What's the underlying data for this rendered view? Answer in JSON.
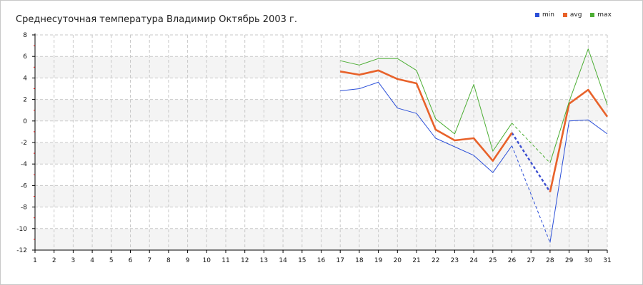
{
  "chart_data": {
    "type": "line",
    "title": "Среднесуточная температура Владимир  Октябрь 2003 г.",
    "categories": [
      "1",
      "2",
      "3",
      "4",
      "5",
      "6",
      "7",
      "8",
      "9",
      "10",
      "11",
      "12",
      "13",
      "14",
      "15",
      "16",
      "17",
      "18",
      "19",
      "20",
      "21",
      "22",
      "23",
      "24",
      "25",
      "26",
      "27",
      "28",
      "29",
      "30",
      "31"
    ],
    "x_labels": [
      "1",
      "2",
      "3",
      "4",
      "5",
      "6",
      "7",
      "8",
      "9",
      "10",
      "11",
      "12",
      "13",
      "14",
      "15",
      "16",
      "17",
      "18",
      "19",
      "20",
      "21",
      "22",
      "23",
      "24",
      "25",
      "26",
      "27",
      "28",
      "29",
      "30",
      "31"
    ],
    "y_labels": [
      "8",
      "6",
      "4",
      "2",
      "0",
      "-2",
      "-4",
      "-6",
      "-8",
      "-10",
      "-12"
    ],
    "ylim": [
      -12,
      8
    ],
    "grid": true,
    "legend_position": "top-right",
    "series": [
      {
        "name": "min",
        "color": "#2b4fd8",
        "points": [
          [
            17,
            2.8
          ],
          [
            18,
            3.0
          ],
          [
            19,
            3.6
          ],
          [
            20,
            1.2
          ],
          [
            21,
            0.7
          ],
          [
            22,
            -1.6
          ],
          [
            23,
            -2.4
          ],
          [
            24,
            -3.2
          ],
          [
            25,
            -4.8
          ],
          [
            26,
            -2.3
          ],
          [
            28,
            -11.3
          ],
          [
            29,
            0.0
          ],
          [
            30,
            0.1
          ],
          [
            31,
            -1.2
          ]
        ]
      },
      {
        "name": "avg",
        "color": "#e8622a",
        "points": [
          [
            17,
            4.6
          ],
          [
            18,
            4.3
          ],
          [
            19,
            4.7
          ],
          [
            20,
            3.9
          ],
          [
            21,
            3.5
          ],
          [
            22,
            -0.8
          ],
          [
            23,
            -1.8
          ],
          [
            24,
            -1.6
          ],
          [
            25,
            -3.7
          ],
          [
            26,
            -1.1
          ],
          [
            28,
            -6.6
          ],
          [
            29,
            1.6
          ],
          [
            30,
            2.9
          ],
          [
            31,
            0.4
          ]
        ]
      },
      {
        "name": "max",
        "color": "#4cae34",
        "points": [
          [
            17,
            5.6
          ],
          [
            18,
            5.2
          ],
          [
            19,
            5.8
          ],
          [
            20,
            5.8
          ],
          [
            21,
            4.7
          ],
          [
            22,
            0.2
          ],
          [
            23,
            -1.2
          ],
          [
            24,
            3.4
          ],
          [
            25,
            -2.8
          ],
          [
            26,
            -0.2
          ],
          [
            28,
            -3.9
          ],
          [
            29,
            1.8
          ],
          [
            30,
            6.7
          ],
          [
            31,
            1.5
          ]
        ]
      }
    ],
    "gap": {
      "from": 26,
      "to": 28,
      "style": "dashed"
    }
  }
}
